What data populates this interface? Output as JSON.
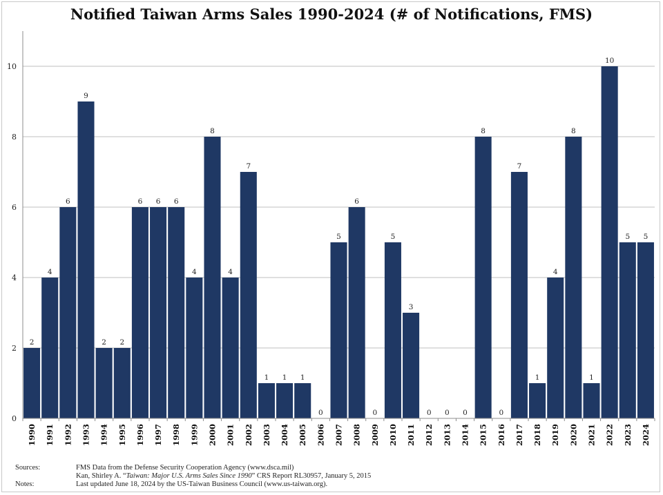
{
  "chart_data": {
    "type": "bar",
    "title": "Notified Taiwan Arms Sales 1990-2024 (# of Notifications, FMS)",
    "xlabel": "",
    "ylabel": "",
    "categories": [
      "1990",
      "1991",
      "1992",
      "1993",
      "1994",
      "1995",
      "1996",
      "1997",
      "1998",
      "1999",
      "2000",
      "2001",
      "2002",
      "2003",
      "2004",
      "2005",
      "2006",
      "2007",
      "2008",
      "2009",
      "2010",
      "2011",
      "2012",
      "2013",
      "2014",
      "2015",
      "2016",
      "2017",
      "2018",
      "2019",
      "2020",
      "2021",
      "2022",
      "2023",
      "2024"
    ],
    "values": [
      2,
      4,
      6,
      9,
      2,
      2,
      6,
      6,
      6,
      4,
      8,
      4,
      7,
      1,
      1,
      1,
      0,
      5,
      6,
      0,
      5,
      3,
      0,
      0,
      0,
      8,
      0,
      7,
      1,
      4,
      8,
      1,
      10,
      5,
      5
    ],
    "ylim": [
      0,
      11
    ],
    "yticks": [
      0,
      2,
      4,
      6,
      8,
      10
    ],
    "grid": true,
    "bar_color": "#1f3864",
    "data_labels": true
  },
  "footer": {
    "sources_label": "Sources:",
    "source_1": "FMS Data from the Defense Security Cooperation Agency (www.dsca.mil)",
    "source_2_prefix": "Kan, Shirley A. “",
    "source_2_title": "Taiwan: Major U.S. Arms Sales Since 1990",
    "source_2_suffix": "” CRS Report RL30957, January 5, 2015",
    "notes_label": "Notes:",
    "note_1": "Last updated June 18, 2024 by the US-Taiwan Business Council (www.us-taiwan.org)."
  }
}
